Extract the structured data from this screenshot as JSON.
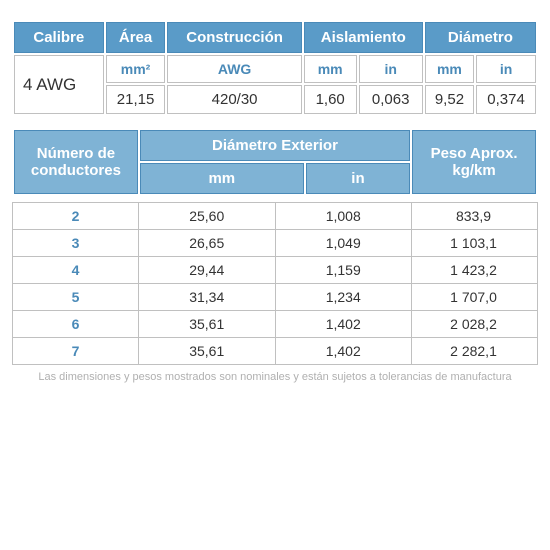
{
  "colors": {
    "header_bg": "#5a9bc8",
    "header2_bg": "#7fb3d5",
    "header_text": "#ffffff",
    "sub_text": "#4a8ab8",
    "cell_text": "#333333",
    "border": "#c0c0c0",
    "footnote": "#b0b0b0",
    "background": "#ffffff"
  },
  "typography": {
    "header_fontsize_pt": 11,
    "sub_fontsize_pt": 10,
    "cell_fontsize_pt": 11,
    "footnote_fontsize_pt": 8,
    "font_family": "Arial"
  },
  "table1": {
    "headers": {
      "calibre": "Calibre",
      "area": "Área",
      "construccion": "Construcción",
      "aislamiento": "Aislamiento",
      "diametro": "Diámetro"
    },
    "units": {
      "area": "mm²",
      "construccion": "AWG",
      "aislamiento_mm": "mm",
      "aislamiento_in": "in",
      "diametro_mm": "mm",
      "diametro_in": "in"
    },
    "row": {
      "calibre": "4 AWG",
      "area": "21,15",
      "construccion": "420/30",
      "aislamiento_mm": "1,60",
      "aislamiento_in": "0,063",
      "diametro_mm": "9,52",
      "diametro_in": "0,374"
    },
    "col_widths_pct": [
      15,
      12,
      22,
      12,
      12,
      12,
      15
    ]
  },
  "table2": {
    "headers": {
      "numero": "Número de conductores",
      "diam_ext": "Diámetro Exterior",
      "peso": "Peso Aprox. kg/km",
      "mm": "mm",
      "in": "in"
    },
    "columns": [
      "numero",
      "diam_mm",
      "diam_in",
      "peso_kgkm"
    ],
    "col_widths_pct": [
      24,
      26,
      26,
      24
    ],
    "rows": [
      {
        "numero": "2",
        "diam_mm": "25,60",
        "diam_in": "1,008",
        "peso_kgkm": "833,9"
      },
      {
        "numero": "3",
        "diam_mm": "26,65",
        "diam_in": "1,049",
        "peso_kgkm": "1 103,1"
      },
      {
        "numero": "4",
        "diam_mm": "29,44",
        "diam_in": "1,159",
        "peso_kgkm": "1 423,2"
      },
      {
        "numero": "5",
        "diam_mm": "31,34",
        "diam_in": "1,234",
        "peso_kgkm": "1 707,0"
      },
      {
        "numero": "6",
        "diam_mm": "35,61",
        "diam_in": "1,402",
        "peso_kgkm": "2 028,2"
      },
      {
        "numero": "7",
        "diam_mm": "35,61",
        "diam_in": "1,402",
        "peso_kgkm": "2 282,1"
      }
    ]
  },
  "footnote": "Las dimensiones y pesos mostrados son nominales y están sujetos a tolerancias de manufactura"
}
